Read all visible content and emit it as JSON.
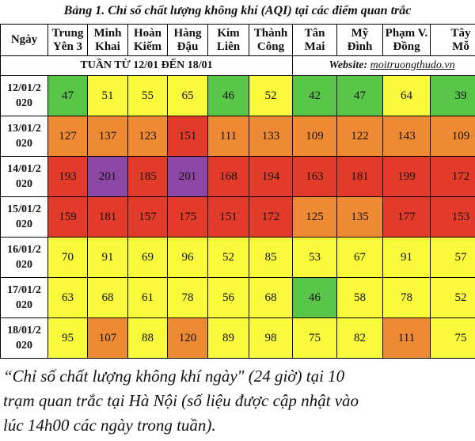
{
  "title": "Bảng 1. Chỉ số chất lượng không khí (AQI) tại các điểm quan trắc",
  "columns": [
    {
      "l1": "Ngày",
      "l2": ""
    },
    {
      "l1": "Trung",
      "l2": "Yên 3"
    },
    {
      "l1": "Minh",
      "l2": "Khai"
    },
    {
      "l1": "Hoàn",
      "l2": "Kiếm"
    },
    {
      "l1": "Hàng",
      "l2": "Đậu"
    },
    {
      "l1": "Kim",
      "l2": "Liên"
    },
    {
      "l1": "Thành",
      "l2": "Công"
    },
    {
      "l1": "Tân",
      "l2": "Mai"
    },
    {
      "l1": "Mỹ",
      "l2": "Đình"
    },
    {
      "l1": "Phạm V.",
      "l2": "Đồng"
    },
    {
      "l1": "Tây",
      "l2": "Mỗ"
    }
  ],
  "week_label": "TUẦN TỪ 12/01 ĐẾN 18/01",
  "website_label": "Website: ",
  "website_url": "moitruongthudo.vn",
  "rows": [
    {
      "d1": "12/01/2",
      "d2": "020",
      "values": [
        "47",
        "51",
        "55",
        "65",
        "46",
        "52",
        "42",
        "47",
        "64",
        "39"
      ],
      "colors": [
        "g",
        "y",
        "y",
        "y",
        "g",
        "y",
        "g",
        "g",
        "y",
        "g"
      ]
    },
    {
      "d1": "13/01/2",
      "d2": "020",
      "values": [
        "127",
        "137",
        "123",
        "151",
        "111",
        "133",
        "109",
        "122",
        "143",
        "109"
      ],
      "colors": [
        "o",
        "o",
        "o",
        "r",
        "o",
        "o",
        "o",
        "o",
        "o",
        "o"
      ]
    },
    {
      "d1": "14/01/2",
      "d2": "020",
      "values": [
        "193",
        "201",
        "185",
        "201",
        "168",
        "194",
        "163",
        "181",
        "199",
        "172"
      ],
      "colors": [
        "r",
        "p",
        "r",
        "p",
        "r",
        "r",
        "r",
        "r",
        "r",
        "r"
      ]
    },
    {
      "d1": "15/01/2",
      "d2": "020",
      "values": [
        "159",
        "181",
        "157",
        "175",
        "151",
        "172",
        "125",
        "135",
        "177",
        "153"
      ],
      "colors": [
        "r",
        "r",
        "r",
        "r",
        "r",
        "r",
        "o",
        "o",
        "r",
        "r"
      ]
    },
    {
      "d1": "16/01/2",
      "d2": "020",
      "values": [
        "70",
        "91",
        "69",
        "96",
        "52",
        "85",
        "53",
        "67",
        "91",
        "57"
      ],
      "colors": [
        "y",
        "y",
        "y",
        "y",
        "y",
        "y",
        "y",
        "y",
        "y",
        "y"
      ]
    },
    {
      "d1": "17/01/2",
      "d2": "020",
      "values": [
        "63",
        "68",
        "61",
        "78",
        "56",
        "68",
        "46",
        "58",
        "78",
        "52"
      ],
      "colors": [
        "y",
        "y",
        "y",
        "y",
        "y",
        "y",
        "g",
        "y",
        "y",
        "y"
      ]
    },
    {
      "d1": "18/01/2",
      "d2": "020",
      "values": [
        "95",
        "107",
        "88",
        "120",
        "89",
        "98",
        "75",
        "82",
        "111",
        "75"
      ],
      "colors": [
        "y",
        "o",
        "y",
        "o",
        "y",
        "y",
        "y",
        "y",
        "o",
        "y"
      ]
    }
  ],
  "note_lines": [
    "“Chỉ số chất lượng không khí ngày\" (24 giờ) tại 10",
    "trạm quan trắc tại Hà Nội (số liệu được cập nhật vào",
    "lúc 14h00 các ngày trong tuần)."
  ]
}
